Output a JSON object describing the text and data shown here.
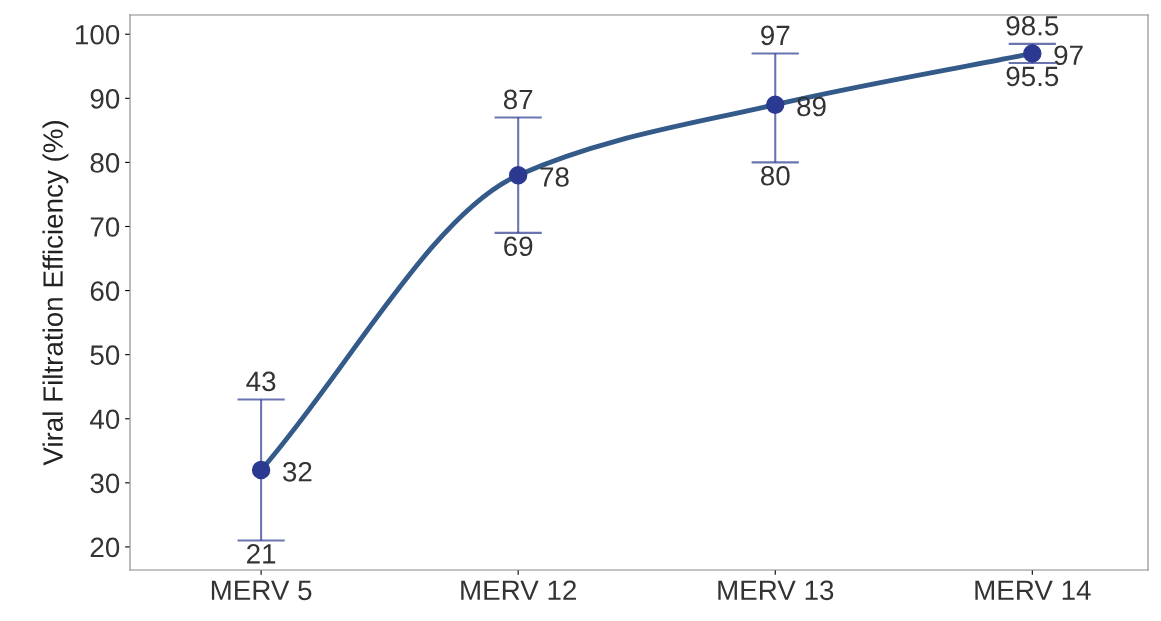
{
  "chart_data": {
    "type": "scatter",
    "ylabel": "Viral Filtration Efficiency (%)",
    "categories": [
      "MERV 5",
      "MERV 12",
      "MERV 13",
      "MERV 14"
    ],
    "ylim": [
      16.4,
      103
    ],
    "yticks": [
      20,
      30,
      40,
      50,
      60,
      70,
      80,
      90,
      100
    ],
    "grid": false,
    "legend": false,
    "series": [
      {
        "type": "line",
        "color": "#345a8a",
        "values": [
          32,
          78,
          89,
          97
        ],
        "line_style": "solid"
      },
      {
        "color": "#2b3990",
        "values": [
          32,
          78,
          89,
          97
        ],
        "errors": [
          [
            21,
            43
          ],
          [
            69,
            87
          ],
          [
            80,
            97
          ],
          [
            95.5,
            98.5
          ]
        ],
        "marker": "circle",
        "data_labels": true
      }
    ],
    "annotations": [
      {
        "text": "43",
        "x": "MERV 5",
        "y": 43
      },
      {
        "text": "21",
        "x": "MERV 5",
        "y": 21
      },
      {
        "text": "87",
        "x": "MERV 12",
        "y": 87
      },
      {
        "text": "69",
        "x": "MERV 12",
        "y": 69
      },
      {
        "text": "97",
        "x": "MERV 13",
        "y": 97
      },
      {
        "text": "80",
        "x": "MERV 13",
        "y": 80
      },
      {
        "text": "98.5",
        "x": "MERV 14",
        "y": 98.5
      },
      {
        "text": "95.5",
        "x": "MERV 14",
        "y": 95.5
      }
    ]
  }
}
